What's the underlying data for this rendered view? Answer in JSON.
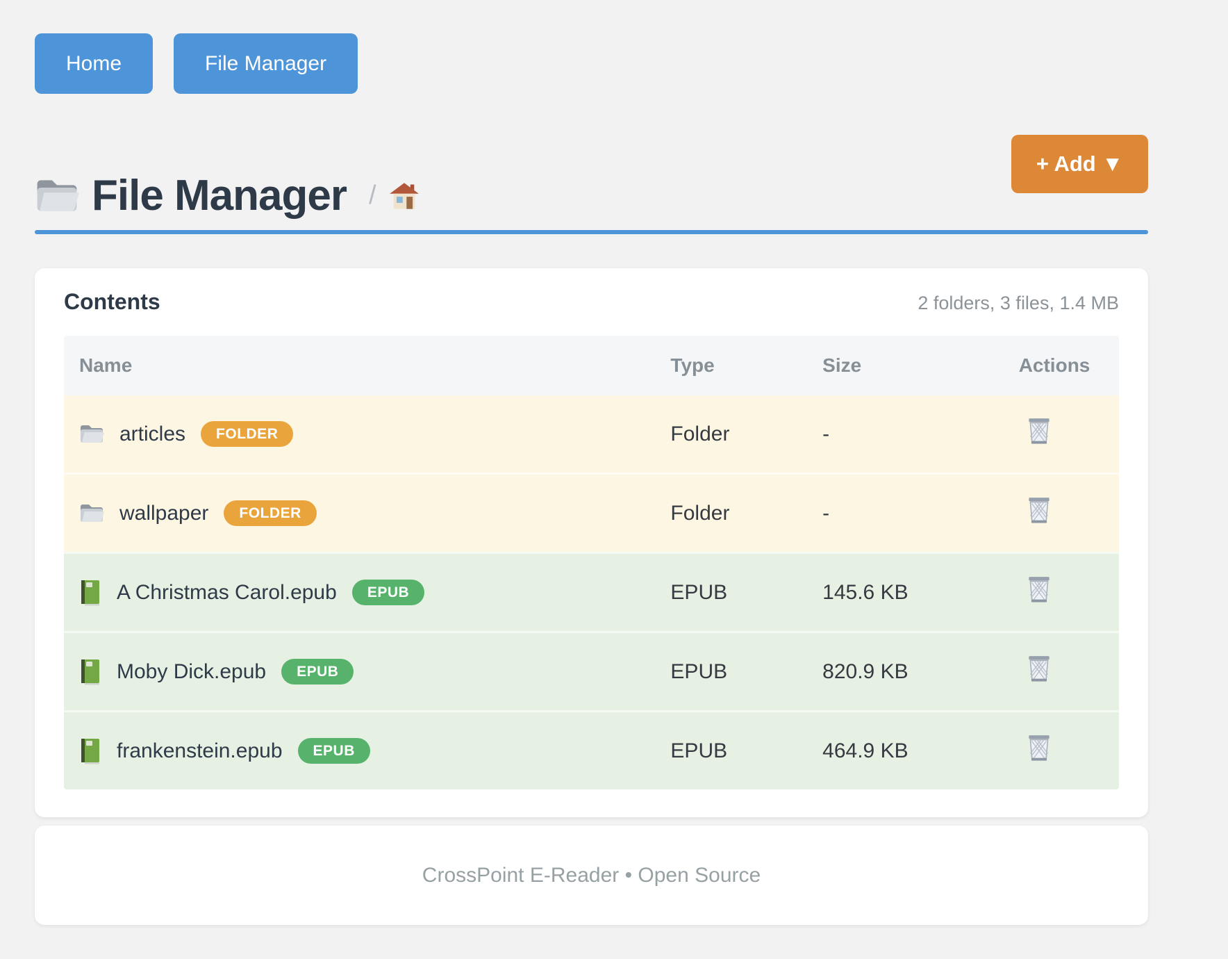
{
  "nav": {
    "buttons": [
      {
        "label": "Home"
      },
      {
        "label": "File Manager"
      }
    ]
  },
  "header": {
    "title": "File Manager",
    "breadcrumb_separator": "/",
    "add_button_label": "+ Add ▼"
  },
  "contents": {
    "heading": "Contents",
    "summary": "2 folders, 3 files, 1.4 MB",
    "columns": [
      "Name",
      "Type",
      "Size",
      "Actions"
    ],
    "rows": [
      {
        "name": "articles",
        "badge": "FOLDER",
        "type": "Folder",
        "size": "-",
        "kind": "folder"
      },
      {
        "name": "wallpaper",
        "badge": "FOLDER",
        "type": "Folder",
        "size": "-",
        "kind": "folder"
      },
      {
        "name": "A Christmas Carol.epub",
        "badge": "EPUB",
        "type": "EPUB",
        "size": "145.6 KB",
        "kind": "epub"
      },
      {
        "name": "Moby Dick.epub",
        "badge": "EPUB",
        "type": "EPUB",
        "size": "820.9 KB",
        "kind": "epub"
      },
      {
        "name": "frankenstein.epub",
        "badge": "EPUB",
        "type": "EPUB",
        "size": "464.9 KB",
        "kind": "epub"
      }
    ]
  },
  "footer": {
    "text": "CrossPoint E-Reader • Open Source"
  },
  "icons": {
    "title": "folder-icon",
    "breadcrumb": "home-icon",
    "row_folder": "folder-icon",
    "row_file": "book-icon",
    "action": "trash-icon"
  },
  "colors": {
    "accent_blue": "#4e94d8",
    "accent_orange": "#dd8836",
    "badge_folder": "#eaa43c",
    "badge_epub": "#57b36b",
    "row_folder_bg": "#fdf6e3",
    "row_epub_bg": "#e6f1e4",
    "header_row_bg": "#f4f6f8",
    "text_dark": "#2e3a48",
    "text_muted": "#8b9298"
  }
}
